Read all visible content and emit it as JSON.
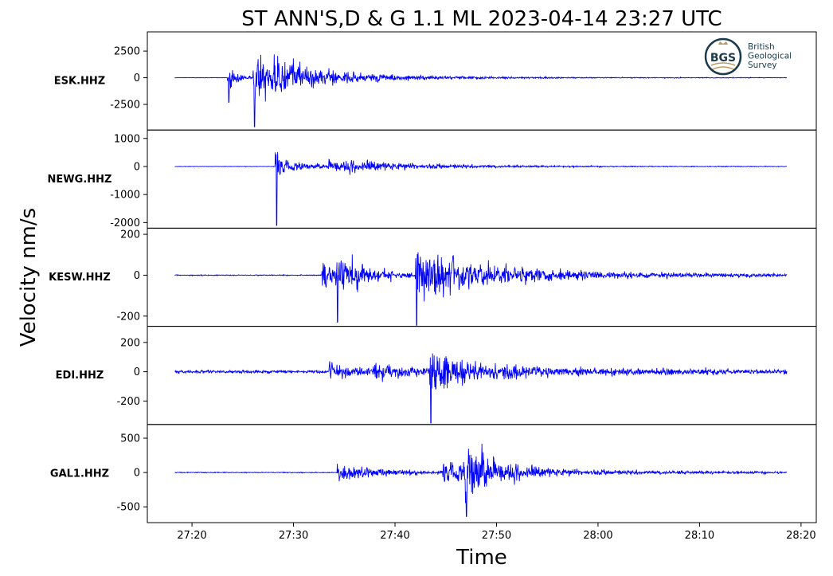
{
  "chart_data": {
    "type": "line",
    "title": "ST ANN'S,D & G 1.1 ML   2023-04-14 23:27 UTC",
    "xlabel": "Time",
    "ylabel": "Velocity nm/s",
    "x_tick_labels": [
      "27:20",
      "27:30",
      "27:40",
      "27:50",
      "28:00",
      "28:10",
      "28:20"
    ],
    "x_tick_seconds": [
      0,
      10,
      20,
      30,
      40,
      50,
      60
    ],
    "x_range_seconds": [
      -4.4,
      61.5
    ],
    "data_range_seconds": [
      -1.7,
      58.6
    ],
    "series_color": "#0000ff",
    "logo": {
      "lines": [
        "British",
        "Geological",
        "Survey"
      ],
      "mark": "BGS",
      "color": "#1b3a4b",
      "accent": "#b89b5e"
    },
    "panels": [
      {
        "station": "ESK.HHZ",
        "ylim": [
          -4900,
          4300
        ],
        "yticks": [
          2500,
          0,
          -2500
        ],
        "ytick_labels": [
          "2500",
          "0",
          "-2500"
        ],
        "noise": 40,
        "events": [
          {
            "t": 3.5,
            "amp": 2500,
            "decay": 0.9,
            "spike": -2300
          },
          {
            "t": 6.0,
            "amp": 3800,
            "decay": 4.0,
            "spike": -4600
          },
          {
            "t": 8.0,
            "amp": 900,
            "decay": 8.0
          }
        ],
        "coda": {
          "t": 10,
          "amp": 300,
          "decay": 15
        }
      },
      {
        "station": "NEWG.HHZ",
        "ylim": [
          -2200,
          1300
        ],
        "yticks": [
          1000,
          0,
          -1000,
          -2000
        ],
        "ytick_labels": [
          "1000",
          "0",
          "-1000",
          "-2000"
        ],
        "noise": 15,
        "events": [
          {
            "t": 8.2,
            "amp": 1250,
            "decay": 0.8,
            "spike": -2100
          },
          {
            "t": 8.6,
            "amp": 250,
            "decay": 5.0
          },
          {
            "t": 13.4,
            "amp": 300,
            "decay": 7.0
          }
        ],
        "coda": {
          "t": 16,
          "amp": 110,
          "decay": 15
        }
      },
      {
        "station": "KESW.HHZ",
        "ylim": [
          -250,
          230
        ],
        "yticks": [
          200,
          0,
          -200
        ],
        "ytick_labels": [
          "200",
          "0",
          "-200"
        ],
        "noise": 4,
        "events": [
          {
            "t": 12.8,
            "amp": 150,
            "decay": 2.5
          },
          {
            "t": 14.2,
            "amp": 160,
            "decay": 3.0,
            "spike": -230
          },
          {
            "t": 22.0,
            "amp": 210,
            "decay": 5.0,
            "spike": -245
          }
        ],
        "coda": {
          "t": 26,
          "amp": 55,
          "decay": 18
        }
      },
      {
        "station": "EDI.HHZ",
        "ylim": [
          -360,
          310
        ],
        "yticks": [
          200,
          0,
          -200
        ],
        "ytick_labels": [
          "200",
          "0",
          "-200"
        ],
        "noise": 18,
        "events": [
          {
            "t": 13.5,
            "amp": 80,
            "decay": 4.0
          },
          {
            "t": 17.8,
            "amp": 110,
            "decay": 3.0
          },
          {
            "t": 23.4,
            "amp": 300,
            "decay": 2.5,
            "spike": -350
          }
        ],
        "coda": {
          "t": 26,
          "amp": 60,
          "decay": 20
        }
      },
      {
        "station": "GAL1.HHZ",
        "ylim": [
          -730,
          700
        ],
        "yticks": [
          500,
          0,
          -500
        ],
        "ytick_labels": [
          "500",
          "0",
          "-500"
        ],
        "noise": 12,
        "events": [
          {
            "t": 14.3,
            "amp": 230,
            "decay": 5.0
          },
          {
            "t": 24.7,
            "amp": 420,
            "decay": 3.0
          },
          {
            "t": 26.9,
            "amp": 650,
            "decay": 2.5,
            "spike": -640
          }
        ],
        "coda": {
          "t": 30,
          "amp": 90,
          "decay": 18
        }
      }
    ]
  }
}
